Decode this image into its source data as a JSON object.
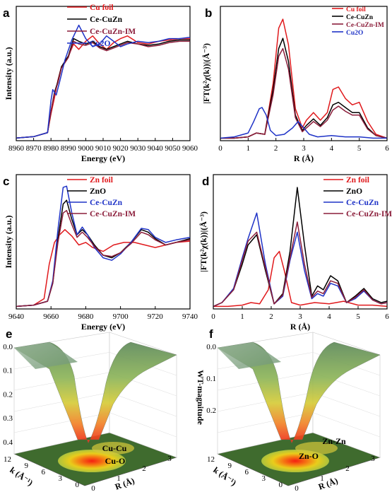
{
  "colors": {
    "red": "#e0191c",
    "black": "#000000",
    "maroon": "#8b1d3a",
    "blue": "#1f33c7"
  },
  "panels": {
    "a": {
      "label": "a",
      "xlabel": "Energy (eV)",
      "ylabel": "Intensity (a.u.)",
      "xticks": [
        "8960",
        "8970",
        "8980",
        "8990",
        "9000",
        "9010",
        "9020",
        "9030",
        "9040",
        "9050",
        "9060"
      ],
      "legend": [
        {
          "name": "Cu foil",
          "color": "#e0191c"
        },
        {
          "name": "Ce-CuZn",
          "color": "#000000"
        },
        {
          "name": "Ce-CuZn-IM",
          "color": "#8b1d3a"
        },
        {
          "name": "Cu2O",
          "color": "#1f33c7"
        }
      ]
    },
    "b": {
      "label": "b",
      "xlabel": "R (Å)",
      "ylabel": "|FT(k²χ(k))|(Å⁻³)",
      "xticks": [
        "0",
        "1",
        "2",
        "3",
        "4",
        "5",
        "6"
      ],
      "legend": [
        {
          "name": "Cu foil",
          "color": "#e0191c"
        },
        {
          "name": "Ce-CuZn",
          "color": "#000000"
        },
        {
          "name": "Ce-CuZn-IM",
          "color": "#8b1d3a"
        },
        {
          "name": "Cu2O",
          "color": "#1f33c7"
        }
      ]
    },
    "c": {
      "label": "c",
      "xlabel": "Energy (eV)",
      "ylabel": "Intensity (a.u.)",
      "xticks": [
        "9640",
        "9660",
        "9680",
        "9700",
        "9720",
        "9740"
      ],
      "legend": [
        {
          "name": "Zn foil",
          "color": "#e0191c"
        },
        {
          "name": "ZnO",
          "color": "#000000"
        },
        {
          "name": "Ce-CuZn",
          "color": "#1f33c7"
        },
        {
          "name": "Ce-CuZn-IM",
          "color": "#8b1d3a"
        }
      ]
    },
    "d": {
      "label": "d",
      "xlabel": "R (Å)",
      "ylabel": "|FT(k²χ(k))|(Å⁻³)",
      "xticks": [
        "0",
        "1",
        "2",
        "3",
        "4",
        "5",
        "6"
      ],
      "legend": [
        {
          "name": "Zn foil",
          "color": "#e0191c"
        },
        {
          "name": "ZnO",
          "color": "#000000"
        },
        {
          "name": "Ce-CuZn",
          "color": "#1f33c7"
        },
        {
          "name": "Ce-CuZn-IM",
          "color": "#8b1d3a"
        }
      ]
    },
    "e": {
      "label": "e",
      "zlabel": "WT-magnitude",
      "zticks": [
        "0.0",
        "0.1",
        "0.2",
        "0.3",
        "0.4"
      ],
      "kticks": [
        "12",
        "9",
        "6",
        "3",
        "0"
      ],
      "rticks": [
        "0",
        "1",
        "2",
        "3"
      ],
      "klabel": "k (Å⁻¹)",
      "rlabel": "R (Å)",
      "annot1": "Cu-Cu",
      "annot2": "Cu-O"
    },
    "f": {
      "label": "f",
      "zlabel": "WT-magnitude",
      "zticks": [
        "0.0",
        "0.1",
        "0.2"
      ],
      "kticks": [
        "12",
        "9",
        "6",
        "3",
        "0"
      ],
      "rticks": [
        "0",
        "1",
        "2",
        "3"
      ],
      "klabel": "k (Å⁻¹)",
      "rlabel": "R (Å)",
      "annot1": "Zn-Zn",
      "annot2": "Zn-O"
    }
  },
  "chart_data": [
    {
      "type": "line",
      "title": "",
      "xlabel": "Energy (eV)",
      "ylabel": "Intensity (a.u.)",
      "xlim": [
        8960,
        9060
      ],
      "series": [
        {
          "name": "Cu foil",
          "x": [
            8960,
            8970,
            8978,
            8980,
            8982,
            8984,
            8986,
            8990,
            8993,
            8996,
            9000,
            9004,
            9008,
            9012,
            9016,
            9020,
            9024,
            9030,
            9036,
            9042,
            9048,
            9054,
            9060
          ],
          "y": [
            0.02,
            0.03,
            0.06,
            0.2,
            0.32,
            0.45,
            0.55,
            0.63,
            0.72,
            0.68,
            0.74,
            0.78,
            0.72,
            0.68,
            0.73,
            0.76,
            0.78,
            0.73,
            0.72,
            0.74,
            0.75,
            0.76,
            0.76
          ]
        },
        {
          "name": "Ce-CuZn",
          "x": [
            8960,
            8970,
            8978,
            8980,
            8982,
            8984,
            8986,
            8990,
            8993,
            8996,
            9000,
            9004,
            9008,
            9012,
            9016,
            9020,
            9024,
            9030,
            9036,
            9042,
            9048,
            9054,
            9060
          ],
          "y": [
            0.02,
            0.03,
            0.06,
            0.22,
            0.36,
            0.44,
            0.55,
            0.63,
            0.76,
            0.74,
            0.72,
            0.74,
            0.7,
            0.68,
            0.7,
            0.72,
            0.74,
            0.72,
            0.71,
            0.72,
            0.74,
            0.75,
            0.75
          ]
        },
        {
          "name": "Ce-CuZn-IM",
          "x": [
            8960,
            8970,
            8978,
            8980,
            8982,
            8984,
            8986,
            8990,
            8993,
            8996,
            9000,
            9004,
            9008,
            9012,
            9016,
            9020,
            9024,
            9030,
            9036,
            9042,
            9048,
            9054,
            9060
          ],
          "y": [
            0.02,
            0.03,
            0.06,
            0.22,
            0.35,
            0.43,
            0.54,
            0.62,
            0.74,
            0.72,
            0.71,
            0.73,
            0.69,
            0.67,
            0.69,
            0.71,
            0.73,
            0.72,
            0.7,
            0.71,
            0.73,
            0.74,
            0.74
          ]
        },
        {
          "name": "Cu2O",
          "x": [
            8960,
            8970,
            8978,
            8980,
            8981,
            8983,
            8985,
            8988,
            8992,
            8996,
            9000,
            9004,
            9008,
            9012,
            9016,
            9020,
            9024,
            9030,
            9036,
            9042,
            9048,
            9054,
            9060
          ],
          "y": [
            0.02,
            0.03,
            0.06,
            0.3,
            0.38,
            0.34,
            0.44,
            0.6,
            0.75,
            0.86,
            0.76,
            0.7,
            0.72,
            0.78,
            0.74,
            0.7,
            0.72,
            0.74,
            0.73,
            0.74,
            0.76,
            0.76,
            0.77
          ]
        }
      ]
    },
    {
      "type": "line",
      "title": "",
      "xlabel": "R (Å)",
      "ylabel": "|FT(k²χ(k))|(Å⁻³)",
      "xlim": [
        0,
        6
      ],
      "series": [
        {
          "name": "Cu foil",
          "x": [
            0,
            0.5,
            1,
            1.3,
            1.6,
            1.9,
            2.1,
            2.25,
            2.45,
            2.7,
            2.95,
            3.1,
            3.35,
            3.6,
            3.85,
            4.05,
            4.25,
            4.5,
            4.75,
            5.0,
            5.3,
            5.6,
            6
          ],
          "y": [
            0.02,
            0.02,
            0.03,
            0.06,
            0.05,
            0.45,
            0.88,
            0.95,
            0.75,
            0.25,
            0.1,
            0.16,
            0.22,
            0.16,
            0.22,
            0.4,
            0.42,
            0.33,
            0.28,
            0.3,
            0.15,
            0.05,
            0.02
          ]
        },
        {
          "name": "Ce-CuZn",
          "x": [
            0,
            0.5,
            1,
            1.3,
            1.6,
            1.9,
            2.1,
            2.25,
            2.45,
            2.7,
            2.95,
            3.1,
            3.35,
            3.6,
            3.85,
            4.05,
            4.25,
            4.5,
            4.75,
            5.0,
            5.3,
            5.6,
            6
          ],
          "y": [
            0.02,
            0.02,
            0.03,
            0.06,
            0.05,
            0.4,
            0.72,
            0.8,
            0.62,
            0.2,
            0.08,
            0.12,
            0.17,
            0.12,
            0.18,
            0.28,
            0.3,
            0.26,
            0.22,
            0.22,
            0.1,
            0.04,
            0.02
          ]
        },
        {
          "name": "Ce-CuZn-IM",
          "x": [
            0,
            0.5,
            1,
            1.3,
            1.6,
            1.9,
            2.1,
            2.25,
            2.45,
            2.7,
            2.95,
            3.1,
            3.35,
            3.6,
            3.85,
            4.05,
            4.25,
            4.5,
            4.75,
            5.0,
            5.3,
            5.6,
            6
          ],
          "y": [
            0.02,
            0.02,
            0.03,
            0.06,
            0.05,
            0.36,
            0.66,
            0.72,
            0.56,
            0.18,
            0.07,
            0.1,
            0.15,
            0.11,
            0.16,
            0.24,
            0.27,
            0.23,
            0.2,
            0.2,
            0.09,
            0.04,
            0.02
          ]
        },
        {
          "name": "Cu2O",
          "x": [
            0,
            0.5,
            1,
            1.2,
            1.4,
            1.5,
            1.65,
            1.8,
            2.0,
            2.3,
            2.6,
            2.8,
            3.0,
            3.2,
            3.5,
            4,
            4.5,
            5,
            5.5,
            6
          ],
          "y": [
            0.02,
            0.03,
            0.06,
            0.15,
            0.25,
            0.26,
            0.2,
            0.08,
            0.04,
            0.05,
            0.1,
            0.15,
            0.1,
            0.05,
            0.03,
            0.04,
            0.03,
            0.03,
            0.02,
            0.02
          ]
        }
      ]
    },
    {
      "type": "line",
      "title": "",
      "xlabel": "Energy (eV)",
      "ylabel": "Intensity (a.u.)",
      "xlim": [
        9640,
        9740
      ],
      "series": [
        {
          "name": "Zn foil",
          "x": [
            9640,
            9650,
            9656,
            9659,
            9662,
            9665,
            9668,
            9672,
            9676,
            9680,
            9684,
            9690,
            9696,
            9702,
            9708,
            9714,
            9720,
            9726,
            9732,
            9740
          ],
          "y": [
            0.02,
            0.03,
            0.08,
            0.35,
            0.52,
            0.58,
            0.62,
            0.57,
            0.5,
            0.52,
            0.48,
            0.45,
            0.5,
            0.52,
            0.52,
            0.5,
            0.48,
            0.5,
            0.52,
            0.53
          ]
        },
        {
          "name": "ZnO",
          "x": [
            9640,
            9650,
            9658,
            9661,
            9664,
            9667,
            9669,
            9672,
            9675,
            9678,
            9681,
            9685,
            9690,
            9695,
            9700,
            9706,
            9712,
            9716,
            9720,
            9726,
            9732,
            9740
          ],
          "y": [
            0.02,
            0.03,
            0.06,
            0.2,
            0.55,
            0.82,
            0.85,
            0.7,
            0.58,
            0.62,
            0.58,
            0.5,
            0.42,
            0.4,
            0.44,
            0.52,
            0.62,
            0.6,
            0.55,
            0.5,
            0.52,
            0.55
          ]
        },
        {
          "name": "Ce-CuZn",
          "x": [
            9640,
            9650,
            9658,
            9661,
            9664,
            9667,
            9669,
            9672,
            9675,
            9678,
            9681,
            9685,
            9690,
            9695,
            9700,
            9706,
            9712,
            9716,
            9720,
            9726,
            9732,
            9740
          ],
          "y": [
            0.02,
            0.03,
            0.06,
            0.22,
            0.62,
            0.95,
            0.96,
            0.75,
            0.58,
            0.64,
            0.58,
            0.48,
            0.4,
            0.38,
            0.43,
            0.52,
            0.63,
            0.62,
            0.56,
            0.52,
            0.54,
            0.56
          ]
        },
        {
          "name": "Ce-CuZn-IM",
          "x": [
            9640,
            9650,
            9658,
            9661,
            9664,
            9667,
            9669,
            9672,
            9675,
            9678,
            9681,
            9685,
            9690,
            9695,
            9700,
            9706,
            9712,
            9716,
            9720,
            9726,
            9732,
            9740
          ],
          "y": [
            0.02,
            0.03,
            0.06,
            0.2,
            0.52,
            0.75,
            0.77,
            0.66,
            0.56,
            0.6,
            0.56,
            0.49,
            0.42,
            0.41,
            0.44,
            0.51,
            0.6,
            0.58,
            0.54,
            0.5,
            0.52,
            0.54
          ]
        }
      ]
    },
    {
      "type": "line",
      "title": "",
      "xlabel": "R (Å)",
      "ylabel": "|FT(k²χ(k))|(Å⁻³)",
      "xlim": [
        0,
        6
      ],
      "series": [
        {
          "name": "Zn foil",
          "x": [
            0,
            0.5,
            1,
            1.3,
            1.6,
            1.9,
            2.1,
            2.28,
            2.45,
            2.7,
            3.0,
            3.5,
            4,
            4.5,
            5,
            5.5,
            6
          ],
          "y": [
            0.02,
            0.02,
            0.03,
            0.05,
            0.04,
            0.15,
            0.4,
            0.45,
            0.3,
            0.05,
            0.03,
            0.05,
            0.04,
            0.06,
            0.03,
            0.03,
            0.02
          ]
        },
        {
          "name": "ZnO",
          "x": [
            0,
            0.3,
            0.7,
            1.0,
            1.2,
            1.5,
            1.8,
            2.1,
            2.4,
            2.65,
            2.9,
            3.15,
            3.4,
            3.6,
            3.8,
            4.05,
            4.3,
            4.6,
            4.9,
            5.2,
            5.5,
            5.8,
            6
          ],
          "y": [
            0.02,
            0.05,
            0.15,
            0.35,
            0.5,
            0.58,
            0.3,
            0.04,
            0.12,
            0.45,
            0.95,
            0.5,
            0.1,
            0.18,
            0.15,
            0.26,
            0.22,
            0.05,
            0.1,
            0.16,
            0.08,
            0.05,
            0.06
          ]
        },
        {
          "name": "Ce-CuZn",
          "x": [
            0,
            0.3,
            0.7,
            1.0,
            1.2,
            1.5,
            1.8,
            2.1,
            2.4,
            2.65,
            2.9,
            3.15,
            3.4,
            3.6,
            3.8,
            4.05,
            4.3,
            4.6,
            4.9,
            5.2,
            5.5,
            5.8,
            6
          ],
          "y": [
            0.02,
            0.05,
            0.16,
            0.4,
            0.55,
            0.75,
            0.35,
            0.04,
            0.1,
            0.38,
            0.6,
            0.3,
            0.08,
            0.12,
            0.1,
            0.2,
            0.18,
            0.05,
            0.08,
            0.14,
            0.07,
            0.04,
            0.05
          ]
        },
        {
          "name": "Ce-CuZn-IM",
          "x": [
            0,
            0.3,
            0.7,
            1.0,
            1.2,
            1.5,
            1.8,
            2.1,
            2.4,
            2.65,
            2.9,
            3.15,
            3.4,
            3.6,
            3.8,
            4.05,
            4.3,
            4.6,
            4.9,
            5.2,
            5.5,
            5.8,
            6
          ],
          "y": [
            0.02,
            0.05,
            0.15,
            0.38,
            0.53,
            0.6,
            0.32,
            0.04,
            0.11,
            0.4,
            0.68,
            0.35,
            0.09,
            0.14,
            0.12,
            0.22,
            0.2,
            0.05,
            0.09,
            0.15,
            0.07,
            0.04,
            0.05
          ]
        }
      ]
    }
  ]
}
